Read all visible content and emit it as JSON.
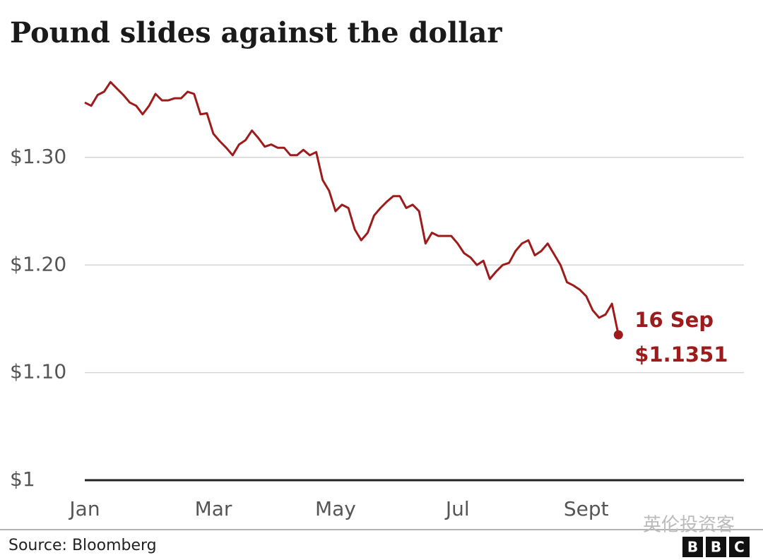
{
  "chart_data": {
    "type": "line",
    "title": "Pound slides against the dollar",
    "categories": [
      "Jan",
      null,
      null,
      null,
      null,
      null,
      null,
      null,
      null,
      null,
      null,
      null,
      null,
      null,
      null,
      null,
      null,
      null,
      null,
      null,
      "Mar",
      null,
      null,
      null,
      null,
      null,
      null,
      null,
      null,
      null,
      null,
      null,
      null,
      null,
      null,
      null,
      null,
      null,
      null,
      "May",
      null,
      null,
      null,
      null,
      null,
      null,
      null,
      null,
      null,
      null,
      null,
      null,
      null,
      null,
      null,
      null,
      null,
      null,
      "Jul",
      null,
      null,
      null,
      null,
      null,
      null,
      null,
      null,
      null,
      null,
      null,
      null,
      null,
      null,
      null,
      null,
      null,
      null,
      null,
      "Sept",
      null,
      null,
      null,
      null,
      null,
      null,
      null,
      null,
      null,
      null,
      null,
      null,
      null,
      null,
      null,
      null,
      null,
      null,
      null,
      null,
      null,
      null,
      null,
      null
    ],
    "values": [
      1.351,
      1.348,
      1.358,
      1.361,
      1.37,
      1.364,
      1.358,
      1.351,
      1.348,
      1.34,
      1.348,
      1.359,
      1.353,
      1.353,
      1.355,
      1.355,
      1.361,
      1.359,
      1.34,
      1.341,
      1.322,
      1.315,
      1.309,
      1.302,
      1.312,
      1.316,
      1.325,
      1.318,
      1.31,
      1.312,
      1.309,
      1.309,
      1.302,
      1.302,
      1.307,
      1.302,
      1.305,
      1.279,
      1.269,
      1.25,
      1.256,
      1.253,
      1.233,
      1.223,
      1.23,
      1.246,
      1.253,
      1.259,
      1.264,
      1.264,
      1.253,
      1.256,
      1.25,
      1.22,
      1.23,
      1.227,
      1.227,
      1.227,
      1.22,
      1.211,
      1.207,
      1.2,
      1.204,
      1.187,
      1.194,
      1.2,
      1.202,
      1.213,
      1.22,
      1.223,
      1.209,
      1.213,
      1.22,
      1.21,
      1.2,
      1.184,
      1.181,
      1.177,
      1.171,
      1.158,
      1.151,
      1.154,
      1.164,
      1.1351,
      null,
      null,
      null,
      null,
      null,
      null,
      null,
      null,
      null,
      null,
      null,
      null,
      null,
      null,
      null,
      null,
      null,
      null,
      null
    ],
    "value_labels": [
      null,
      null,
      null,
      null,
      null,
      null,
      null,
      null,
      null,
      null,
      null,
      null,
      null,
      null,
      null,
      null,
      null,
      null,
      null,
      null,
      null,
      null,
      null,
      null,
      null,
      null,
      null,
      null,
      null,
      null,
      null,
      null,
      null,
      null,
      null,
      null,
      null,
      null,
      null,
      null,
      null,
      null,
      null,
      null,
      null,
      null,
      null,
      null,
      null,
      null,
      null,
      null,
      null,
      null,
      null,
      null,
      null,
      null,
      null,
      null,
      null,
      null,
      null,
      null,
      null,
      null,
      null,
      null,
      null,
      null,
      null,
      null,
      null,
      null,
      null,
      null,
      null,
      null,
      null,
      null,
      null,
      null,
      null,
      "$1.1351",
      null,
      null,
      null,
      null,
      null,
      null,
      null,
      null,
      null,
      null,
      null,
      null,
      null,
      null,
      null,
      null,
      null,
      null,
      null
    ],
    "annotation": "16 Sep",
    "color": "#9e1b1b",
    "ylim": [
      1,
      1.38
    ],
    "yticks": [
      {
        "value": 1,
        "label": "$1"
      },
      {
        "value": 1.1,
        "label": "$1.10"
      },
      {
        "value": 1.2,
        "label": "$1.20"
      },
      {
        "value": 1.3,
        "label": "$1.30"
      }
    ],
    "grid": true,
    "source": "Source: Bloomberg",
    "logo": [
      "B",
      "B",
      "C"
    ],
    "watermark": "英伦投资客"
  }
}
